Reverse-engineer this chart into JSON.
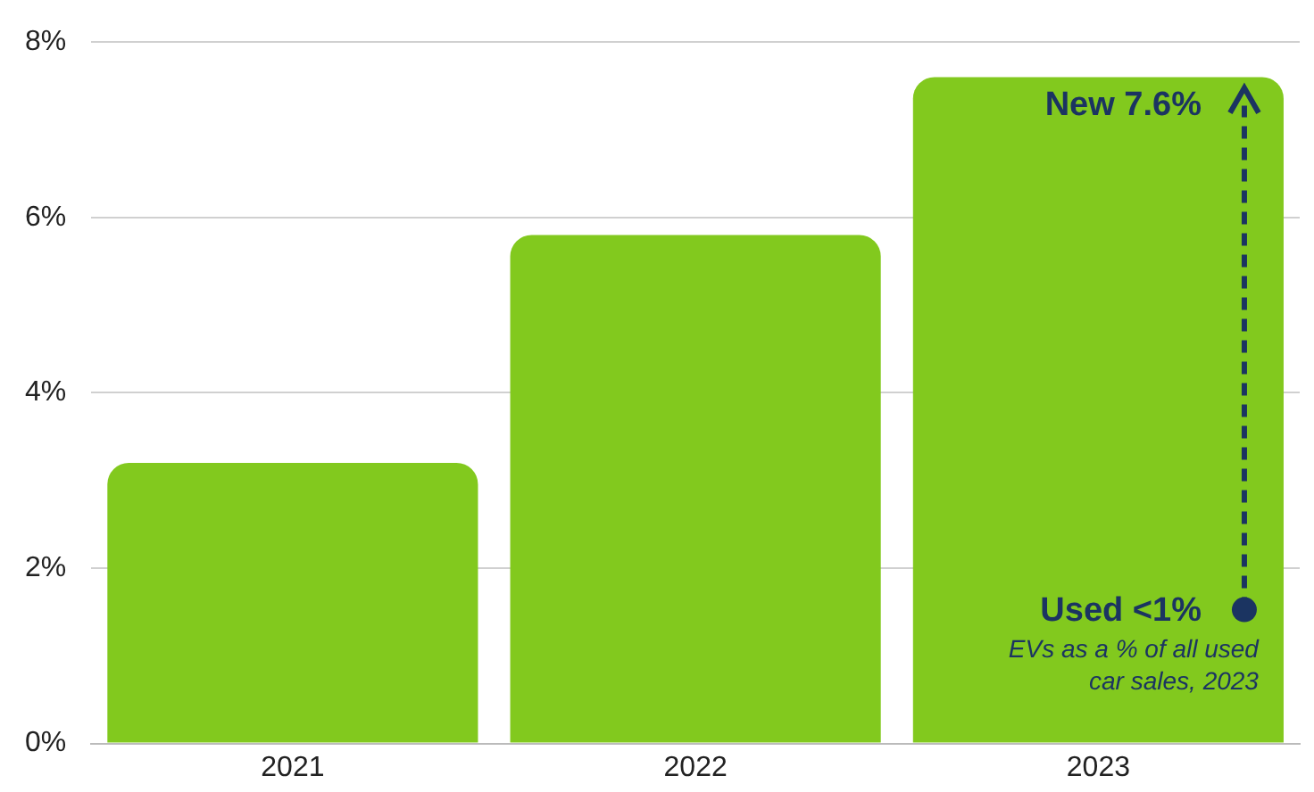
{
  "chart_data": {
    "type": "bar",
    "categories": [
      "2021",
      "2022",
      "2023"
    ],
    "values": [
      3.2,
      5.8,
      7.6
    ],
    "color": "#82c91e",
    "ylim": [
      0,
      8
    ],
    "yticks": [
      {
        "value": 0,
        "label": "0%"
      },
      {
        "value": 2,
        "label": "2%"
      },
      {
        "value": 4,
        "label": "4%"
      },
      {
        "value": 6,
        "label": "6%"
      },
      {
        "value": 8,
        "label": "8%"
      }
    ],
    "grid": "y",
    "legend": false,
    "annotations": [
      {
        "text": "New 7.6%",
        "x": "2023",
        "y": 7.6
      },
      "Used <1%",
      "EVs as a % of all used car sales, 2023"
    ]
  }
}
